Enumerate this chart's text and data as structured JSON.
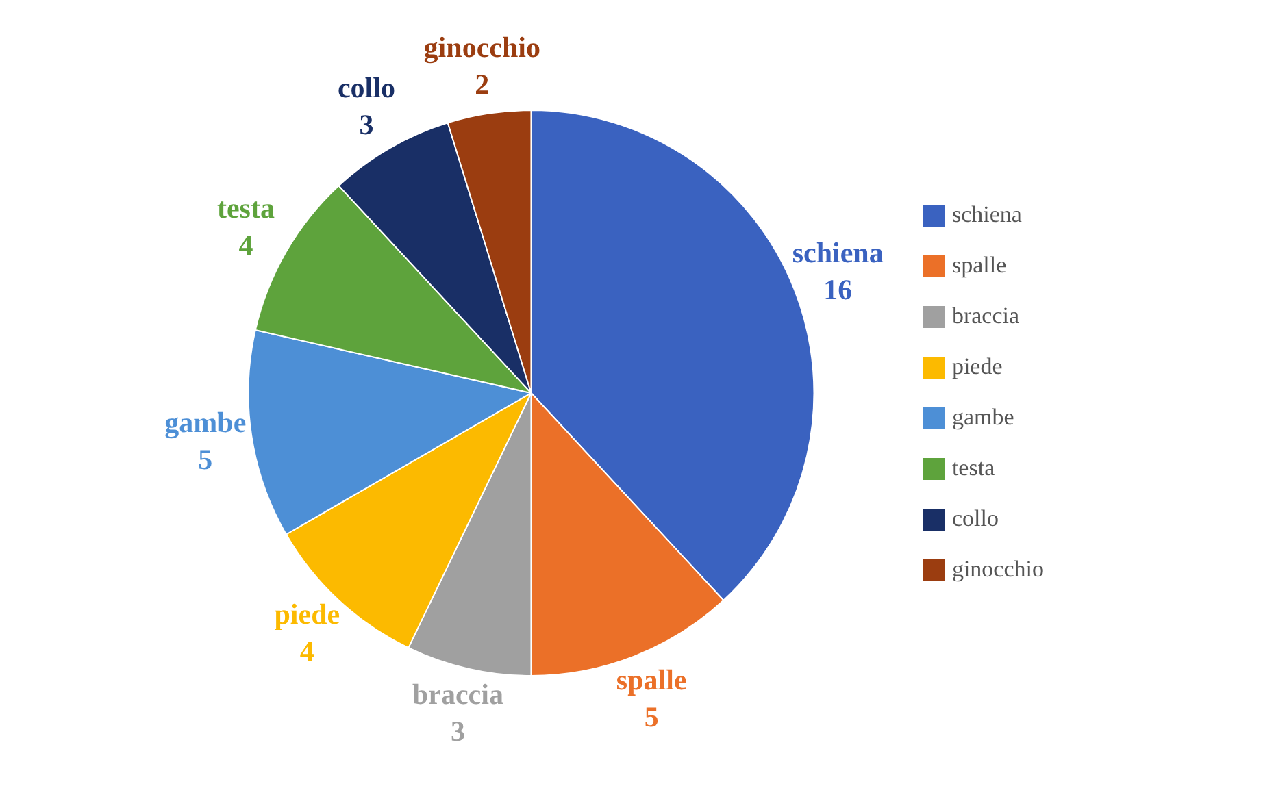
{
  "chart_data": {
    "type": "pie",
    "categories": [
      "schiena",
      "spalle",
      "braccia",
      "piede",
      "gambe",
      "testa",
      "collo",
      "ginocchio"
    ],
    "values": [
      16,
      5,
      3,
      4,
      5,
      4,
      3,
      2
    ],
    "colors": [
      "#3a62c0",
      "#eb7028",
      "#a0a0a0",
      "#fcba00",
      "#4d8fd6",
      "#5ea33c",
      "#192f66",
      "#9b3d10"
    ],
    "data_labels": true,
    "legend": "right"
  }
}
